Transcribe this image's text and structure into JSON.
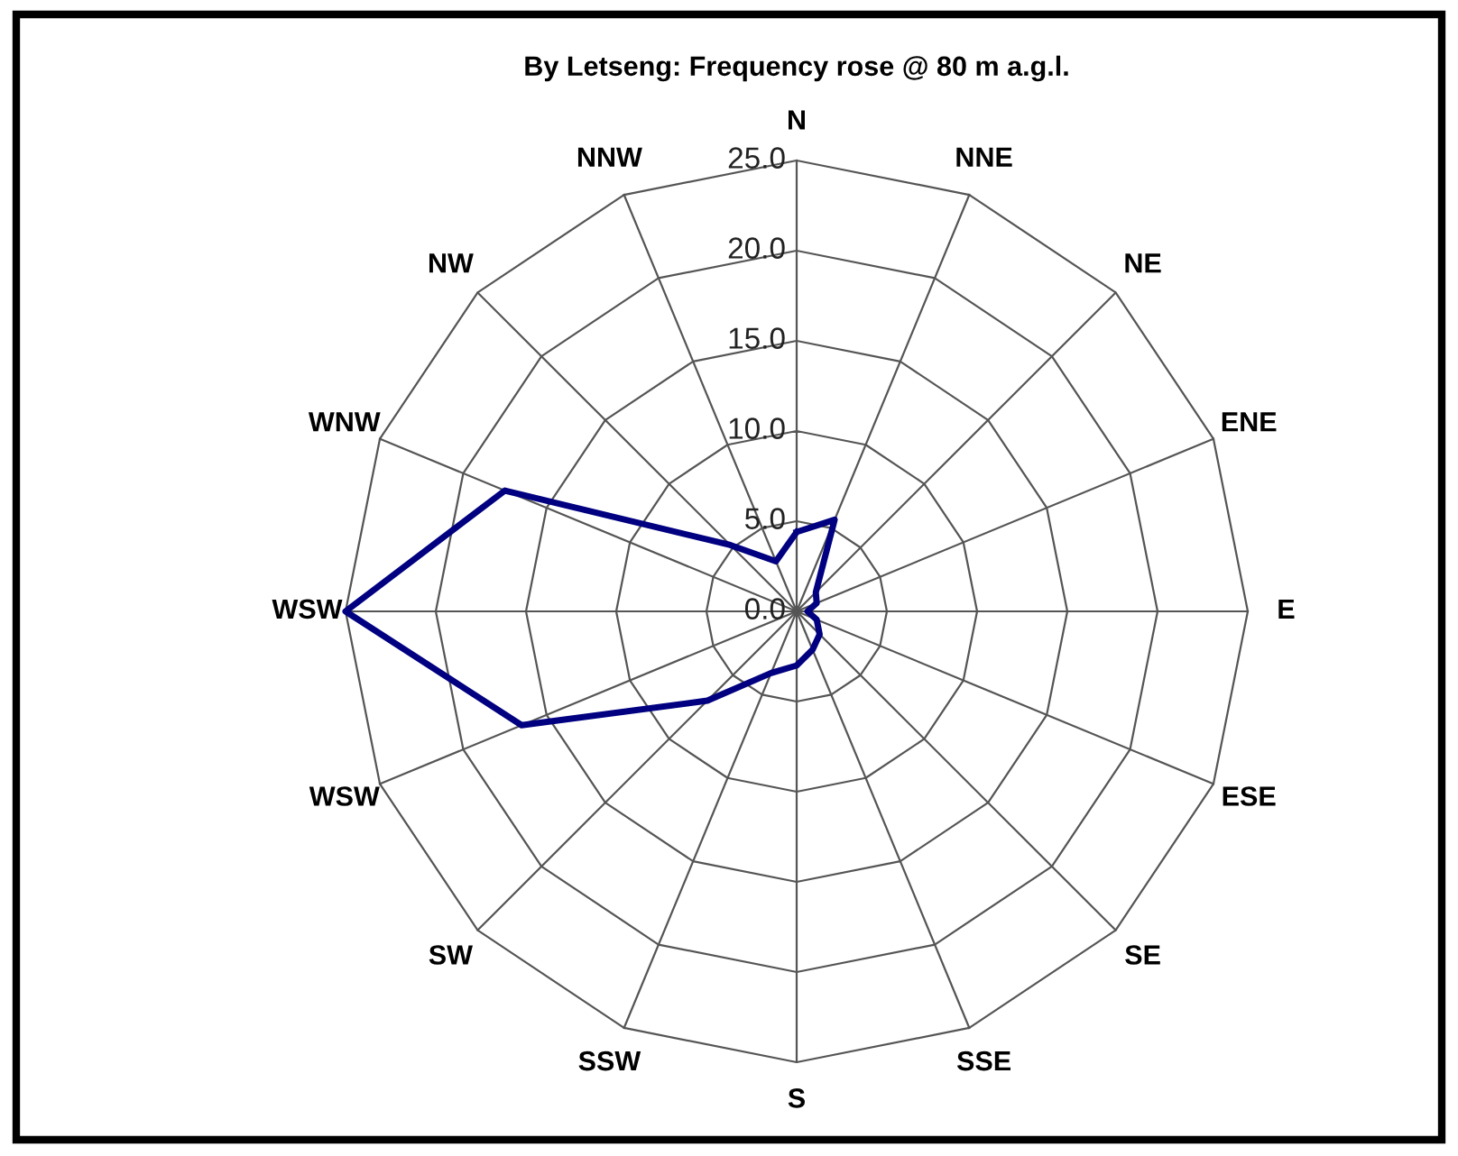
{
  "chart_data": {
    "type": "radar",
    "title": "By Letseng: Frequency rose @ 80 m a.g.l.",
    "categories": [
      "N",
      "NNE",
      "NE",
      "ENE",
      "E",
      "ESE",
      "SE",
      "SSE",
      "S",
      "SSW",
      "SW",
      "WSW",
      "WSW",
      "WNW",
      "NW",
      "NNW"
    ],
    "series": [
      {
        "color": "#000080",
        "values": [
          4.4,
          5.5,
          1.5,
          1.2,
          0.6,
          1.2,
          1.8,
          2.3,
          3.0,
          3.7,
          7.0,
          16.5,
          25.0,
          17.5,
          5.2,
          3.0
        ]
      }
    ],
    "ylim": [
      0,
      25
    ],
    "yticks": [
      {
        "value": 0,
        "label": "0.0"
      },
      {
        "value": 5,
        "label": "5.0"
      },
      {
        "value": 10,
        "label": "10.0"
      },
      {
        "value": 15,
        "label": "15.0"
      },
      {
        "value": 20,
        "label": "20.0"
      },
      {
        "value": 25,
        "label": "25.0"
      }
    ],
    "grid": true,
    "marker": "none",
    "line_style": "solid"
  }
}
